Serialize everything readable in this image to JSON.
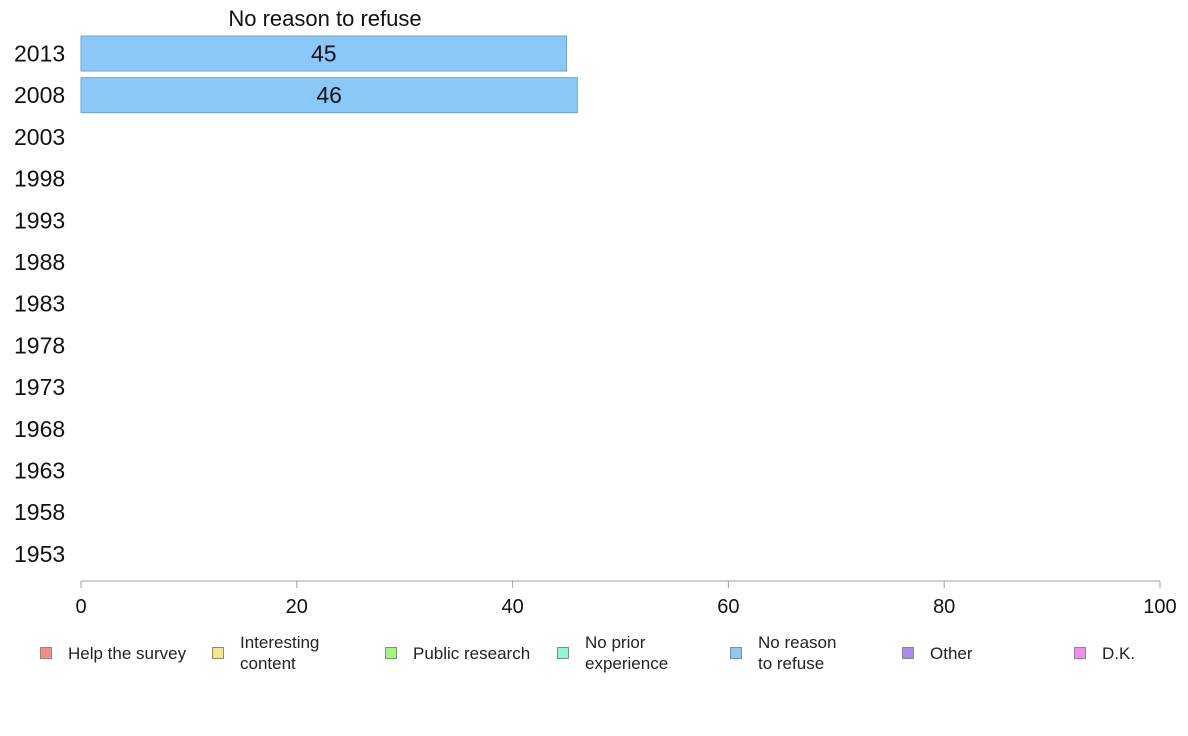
{
  "chart_data": {
    "type": "bar",
    "orientation": "horizontal",
    "title": "No reason to refuse",
    "categories": [
      "2013",
      "2008",
      "2003",
      "1998",
      "1993",
      "1988",
      "1983",
      "1978",
      "1973",
      "1968",
      "1963",
      "1958",
      "1953"
    ],
    "series": [
      {
        "name": "No reason\nto refuse",
        "color": "#8ac8fa",
        "values": [
          45,
          46,
          null,
          null,
          null,
          null,
          null,
          null,
          null,
          null,
          null,
          null,
          null
        ]
      }
    ],
    "xlim": [
      0,
      100
    ],
    "xticks": [
      0,
      20,
      40,
      60,
      80,
      100
    ],
    "grid": false,
    "legend": {
      "position": "bottom",
      "items": [
        {
          "label": "Help the survey",
          "color": "#f98a8a"
        },
        {
          "label": "Interesting\ncontent",
          "color": "#f9e58a"
        },
        {
          "label": "Public research",
          "color": "#9ef97a"
        },
        {
          "label": "No prior\nexperience",
          "color": "#8af9d3"
        },
        {
          "label": "No reason\nto refuse",
          "color": "#8ac8fa"
        },
        {
          "label": "Other",
          "color": "#a98af9"
        },
        {
          "label": "D.K.",
          "color": "#f98af1"
        }
      ]
    }
  }
}
